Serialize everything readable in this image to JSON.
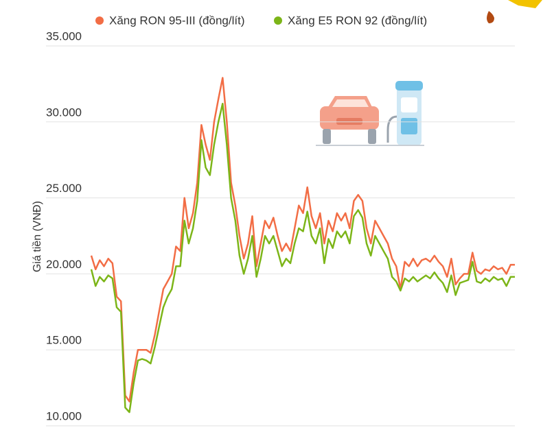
{
  "chart_data": {
    "type": "line",
    "y_label": "Giá tiền (VNĐ)",
    "ylim": [
      10000,
      35000
    ],
    "yticks": [
      {
        "value": 10000,
        "label": "10.000"
      },
      {
        "value": 15000,
        "label": "15.000"
      },
      {
        "value": 20000,
        "label": "20.000"
      },
      {
        "value": 25000,
        "label": "25.000"
      },
      {
        "value": 30000,
        "label": "30.000"
      },
      {
        "value": 35000,
        "label": "35.000"
      }
    ],
    "grid": true,
    "legend": "top",
    "series": [
      {
        "name": "Xăng RON 95-III (đồng/lít)",
        "color": "#f26d45",
        "values": [
          21200,
          20300,
          20900,
          20500,
          21000,
          20700,
          18500,
          18200,
          12000,
          11600,
          13500,
          15000,
          15000,
          15000,
          14800,
          16000,
          17500,
          19000,
          19500,
          20000,
          21800,
          21500,
          25000,
          23000,
          24000,
          26000,
          29800,
          28500,
          27500,
          30000,
          31500,
          32900,
          30000,
          26000,
          24500,
          22500,
          21000,
          22000,
          23800,
          20500,
          22000,
          23500,
          23000,
          23700,
          22500,
          21500,
          22000,
          21500,
          23000,
          24500,
          24000,
          25700,
          23800,
          23000,
          24000,
          22000,
          23500,
          22800,
          24000,
          23500,
          24000,
          23000,
          24800,
          25200,
          24800,
          23000,
          22000,
          23500,
          23000,
          22500,
          22000,
          21000,
          20500,
          19000,
          20800,
          20500,
          21000,
          20500,
          20900,
          21000,
          20800,
          21200,
          20800,
          20500,
          19800,
          21000,
          19300,
          19700,
          20000,
          20000,
          21400,
          20200,
          20000,
          20300,
          20200,
          20500,
          20300,
          20400,
          20000,
          20600,
          20600
        ]
      },
      {
        "name": "Xăng E5 RON 92 (đồng/lít)",
        "color": "#7cb518",
        "values": [
          20300,
          19200,
          19800,
          19500,
          19900,
          19700,
          17800,
          17500,
          11200,
          10900,
          12800,
          14300,
          14400,
          14300,
          14100,
          15200,
          16500,
          17800,
          18500,
          19000,
          20500,
          20500,
          23500,
          22000,
          23000,
          24800,
          28800,
          27000,
          26500,
          28500,
          30000,
          31200,
          28500,
          25000,
          23500,
          21200,
          20000,
          21000,
          22500,
          19800,
          21000,
          22500,
          22000,
          22500,
          21500,
          20500,
          21000,
          20700,
          22000,
          23000,
          22800,
          24100,
          22500,
          22000,
          23000,
          20700,
          22300,
          21700,
          22800,
          22400,
          22800,
          22000,
          23800,
          24200,
          23700,
          22000,
          21200,
          22500,
          22000,
          21500,
          21000,
          19800,
          19500,
          18900,
          19700,
          19500,
          19800,
          19500,
          19700,
          19900,
          19700,
          20100,
          19700,
          19400,
          18800,
          19900,
          18600,
          19400,
          19500,
          19600,
          20800,
          19500,
          19400,
          19700,
          19500,
          19800,
          19600,
          19700,
          19200,
          19800,
          19800
        ]
      }
    ]
  }
}
